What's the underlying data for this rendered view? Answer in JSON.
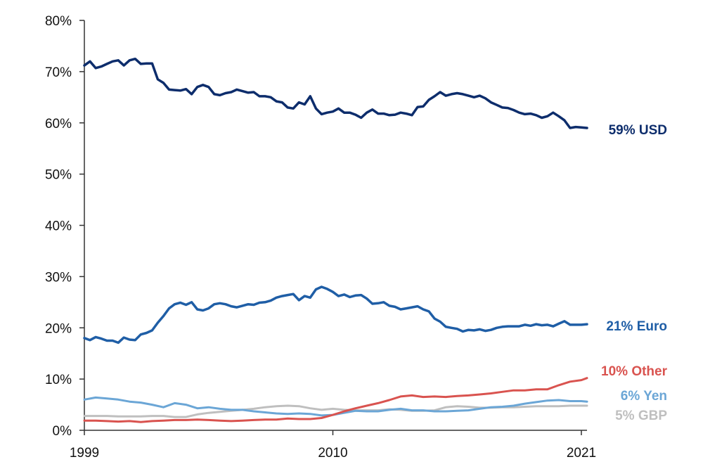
{
  "chart_data": {
    "type": "line",
    "title": "",
    "xlabel": "",
    "ylabel": "",
    "xlim": [
      1999,
      2021.25
    ],
    "ylim": [
      0,
      80
    ],
    "x_ticks": [
      "1999",
      "2010",
      "2021"
    ],
    "y_ticks": [
      "0%",
      "10%",
      "20%",
      "30%",
      "40%",
      "50%",
      "60%",
      "70%",
      "80%"
    ],
    "grid": false,
    "legend": "direct labels at line ends (right)",
    "series": [
      {
        "name": "59% USD",
        "color": "#0d2d6c",
        "x": [
          1999.0,
          1999.25,
          1999.5,
          1999.75,
          2000.0,
          2000.25,
          2000.5,
          2000.75,
          2001.0,
          2001.25,
          2001.5,
          2001.75,
          2002.0,
          2002.25,
          2002.5,
          2002.75,
          2003.0,
          2003.25,
          2003.5,
          2003.75,
          2004.0,
          2004.25,
          2004.5,
          2004.75,
          2005.0,
          2005.25,
          2005.5,
          2005.75,
          2006.0,
          2006.25,
          2006.5,
          2006.75,
          2007.0,
          2007.25,
          2007.5,
          2007.75,
          2008.0,
          2008.25,
          2008.5,
          2008.75,
          2009.0,
          2009.25,
          2009.5,
          2009.75,
          2010.0,
          2010.25,
          2010.5,
          2010.75,
          2011.0,
          2011.25,
          2011.5,
          2011.75,
          2012.0,
          2012.25,
          2012.5,
          2012.75,
          2013.0,
          2013.25,
          2013.5,
          2013.75,
          2014.0,
          2014.25,
          2014.5,
          2014.75,
          2015.0,
          2015.25,
          2015.5,
          2015.75,
          2016.0,
          2016.25,
          2016.5,
          2016.75,
          2017.0,
          2017.25,
          2017.5,
          2017.75,
          2018.0,
          2018.25,
          2018.5,
          2018.75,
          2019.0,
          2019.25,
          2019.5,
          2019.75,
          2020.0,
          2020.25,
          2020.5,
          2020.75,
          2021.0,
          2021.25
        ],
        "values": [
          71.2,
          72.0,
          70.7,
          71.0,
          71.5,
          72.0,
          72.2,
          71.2,
          72.2,
          72.5,
          71.5,
          71.6,
          71.6,
          68.5,
          67.8,
          66.5,
          66.4,
          66.3,
          66.6,
          65.6,
          67.0,
          67.4,
          67.0,
          65.6,
          65.4,
          65.8,
          66.0,
          66.5,
          66.2,
          65.9,
          66.0,
          65.2,
          65.2,
          65.0,
          64.2,
          64.0,
          63.0,
          62.8,
          64.0,
          63.6,
          65.2,
          62.8,
          61.7,
          62.0,
          62.2,
          62.8,
          62.0,
          62.0,
          61.6,
          61.0,
          62.0,
          62.6,
          61.8,
          61.8,
          61.5,
          61.6,
          62.0,
          61.8,
          61.5,
          63.1,
          63.2,
          64.5,
          65.2,
          66.0,
          65.3,
          65.6,
          65.8,
          65.6,
          65.3,
          65.0,
          65.3,
          64.8,
          64.0,
          63.5,
          63.0,
          62.9,
          62.5,
          62.0,
          61.7,
          61.8,
          61.5,
          61.0,
          61.3,
          62.0,
          61.3,
          60.5,
          59.0,
          59.2,
          59.1,
          59.0
        ]
      },
      {
        "name": "21% Euro",
        "color": "#1f5ea6",
        "x": [
          1999.0,
          1999.25,
          1999.5,
          1999.75,
          2000.0,
          2000.25,
          2000.5,
          2000.75,
          2001.0,
          2001.25,
          2001.5,
          2001.75,
          2002.0,
          2002.25,
          2002.5,
          2002.75,
          2003.0,
          2003.25,
          2003.5,
          2003.75,
          2004.0,
          2004.25,
          2004.5,
          2004.75,
          2005.0,
          2005.25,
          2005.5,
          2005.75,
          2006.0,
          2006.25,
          2006.5,
          2006.75,
          2007.0,
          2007.25,
          2007.5,
          2007.75,
          2008.0,
          2008.25,
          2008.5,
          2008.75,
          2009.0,
          2009.25,
          2009.5,
          2009.75,
          2010.0,
          2010.25,
          2010.5,
          2010.75,
          2011.0,
          2011.25,
          2011.5,
          2011.75,
          2012.0,
          2012.25,
          2012.5,
          2012.75,
          2013.0,
          2013.25,
          2013.5,
          2013.75,
          2014.0,
          2014.25,
          2014.5,
          2014.75,
          2015.0,
          2015.25,
          2015.5,
          2015.75,
          2016.0,
          2016.25,
          2016.5,
          2016.75,
          2017.0,
          2017.25,
          2017.5,
          2017.75,
          2018.0,
          2018.25,
          2018.5,
          2018.75,
          2019.0,
          2019.25,
          2019.5,
          2019.75,
          2020.0,
          2020.25,
          2020.5,
          2020.75,
          2021.0,
          2021.25
        ],
        "values": [
          18.0,
          17.6,
          18.2,
          17.9,
          17.5,
          17.5,
          17.1,
          18.1,
          17.7,
          17.6,
          18.7,
          19.0,
          19.5,
          21.0,
          22.3,
          23.8,
          24.6,
          24.9,
          24.5,
          25.0,
          23.6,
          23.4,
          23.8,
          24.6,
          24.8,
          24.6,
          24.2,
          24.0,
          24.3,
          24.6,
          24.5,
          24.9,
          25.0,
          25.3,
          25.9,
          26.2,
          26.4,
          26.6,
          25.4,
          26.2,
          25.9,
          27.5,
          28.0,
          27.6,
          27.0,
          26.2,
          26.5,
          26.0,
          26.3,
          26.4,
          25.7,
          24.7,
          24.8,
          25.0,
          24.3,
          24.1,
          23.6,
          23.8,
          24.0,
          24.2,
          23.6,
          23.2,
          21.8,
          21.2,
          20.2,
          20.0,
          19.8,
          19.3,
          19.6,
          19.5,
          19.7,
          19.4,
          19.6,
          20.0,
          20.2,
          20.3,
          20.3,
          20.3,
          20.6,
          20.4,
          20.7,
          20.5,
          20.6,
          20.3,
          20.8,
          21.3,
          20.6,
          20.6,
          20.6,
          20.7
        ]
      },
      {
        "name": "10% Other",
        "color": "#d9534f",
        "x": [
          1999.0,
          1999.5,
          2000.0,
          2000.5,
          2001.0,
          2001.5,
          2002.0,
          2002.5,
          2003.0,
          2003.5,
          2004.0,
          2004.5,
          2005.0,
          2005.5,
          2006.0,
          2006.5,
          2007.0,
          2007.5,
          2008.0,
          2008.5,
          2009.0,
          2009.5,
          2010.0,
          2010.5,
          2011.0,
          2011.5,
          2012.0,
          2012.5,
          2013.0,
          2013.5,
          2014.0,
          2014.5,
          2015.0,
          2015.5,
          2016.0,
          2016.5,
          2017.0,
          2017.5,
          2018.0,
          2018.5,
          2019.0,
          2019.5,
          2020.0,
          2020.5,
          2021.0,
          2021.25
        ],
        "values": [
          1.9,
          1.9,
          1.8,
          1.7,
          1.8,
          1.6,
          1.8,
          1.9,
          2.0,
          2.0,
          2.1,
          2.0,
          1.9,
          1.8,
          1.9,
          2.0,
          2.1,
          2.1,
          2.3,
          2.2,
          2.2,
          2.4,
          3.0,
          3.7,
          4.3,
          4.8,
          5.3,
          5.9,
          6.6,
          6.8,
          6.5,
          6.6,
          6.5,
          6.7,
          6.8,
          7.0,
          7.2,
          7.5,
          7.8,
          7.8,
          8.0,
          8.0,
          8.8,
          9.5,
          9.8,
          10.2
        ]
      },
      {
        "name": "6% Yen",
        "color": "#6ba6d6",
        "x": [
          1999.0,
          1999.5,
          2000.0,
          2000.5,
          2001.0,
          2001.5,
          2002.0,
          2002.5,
          2003.0,
          2003.5,
          2004.0,
          2004.5,
          2005.0,
          2005.5,
          2006.0,
          2006.5,
          2007.0,
          2007.5,
          2008.0,
          2008.5,
          2009.0,
          2009.5,
          2010.0,
          2010.5,
          2011.0,
          2011.5,
          2012.0,
          2012.5,
          2013.0,
          2013.5,
          2014.0,
          2014.5,
          2015.0,
          2015.5,
          2016.0,
          2016.5,
          2017.0,
          2017.5,
          2018.0,
          2018.5,
          2019.0,
          2019.5,
          2020.0,
          2020.5,
          2021.0,
          2021.25
        ],
        "values": [
          6.0,
          6.4,
          6.2,
          6.0,
          5.6,
          5.4,
          5.0,
          4.5,
          5.3,
          5.0,
          4.3,
          4.5,
          4.2,
          4.0,
          4.0,
          3.7,
          3.5,
          3.3,
          3.2,
          3.3,
          3.2,
          2.9,
          3.0,
          3.4,
          3.8,
          3.7,
          3.7,
          4.0,
          4.2,
          3.9,
          3.9,
          3.7,
          3.7,
          3.8,
          3.9,
          4.2,
          4.5,
          4.6,
          4.8,
          5.2,
          5.5,
          5.8,
          5.9,
          5.7,
          5.7,
          5.6
        ]
      },
      {
        "name": "5% GBP",
        "color": "#bfbfbf",
        "x": [
          1999.0,
          1999.5,
          2000.0,
          2000.5,
          2001.0,
          2001.5,
          2002.0,
          2002.5,
          2003.0,
          2003.5,
          2004.0,
          2004.5,
          2005.0,
          2005.5,
          2006.0,
          2006.5,
          2007.0,
          2007.5,
          2008.0,
          2008.5,
          2009.0,
          2009.5,
          2010.0,
          2010.5,
          2011.0,
          2011.5,
          2012.0,
          2012.5,
          2013.0,
          2013.5,
          2014.0,
          2014.5,
          2015.0,
          2015.5,
          2016.0,
          2016.5,
          2017.0,
          2017.5,
          2018.0,
          2018.5,
          2019.0,
          2019.5,
          2020.0,
          2020.5,
          2021.0,
          2021.25
        ],
        "values": [
          2.8,
          2.8,
          2.8,
          2.7,
          2.7,
          2.7,
          2.8,
          2.8,
          2.6,
          2.6,
          3.1,
          3.4,
          3.6,
          3.8,
          4.0,
          4.2,
          4.5,
          4.7,
          4.8,
          4.7,
          4.3,
          4.0,
          4.2,
          4.0,
          3.9,
          3.9,
          3.9,
          4.1,
          4.0,
          3.8,
          3.8,
          3.9,
          4.5,
          4.7,
          4.6,
          4.4,
          4.4,
          4.5,
          4.5,
          4.6,
          4.7,
          4.7,
          4.7,
          4.8,
          4.8,
          4.8
        ]
      }
    ]
  }
}
